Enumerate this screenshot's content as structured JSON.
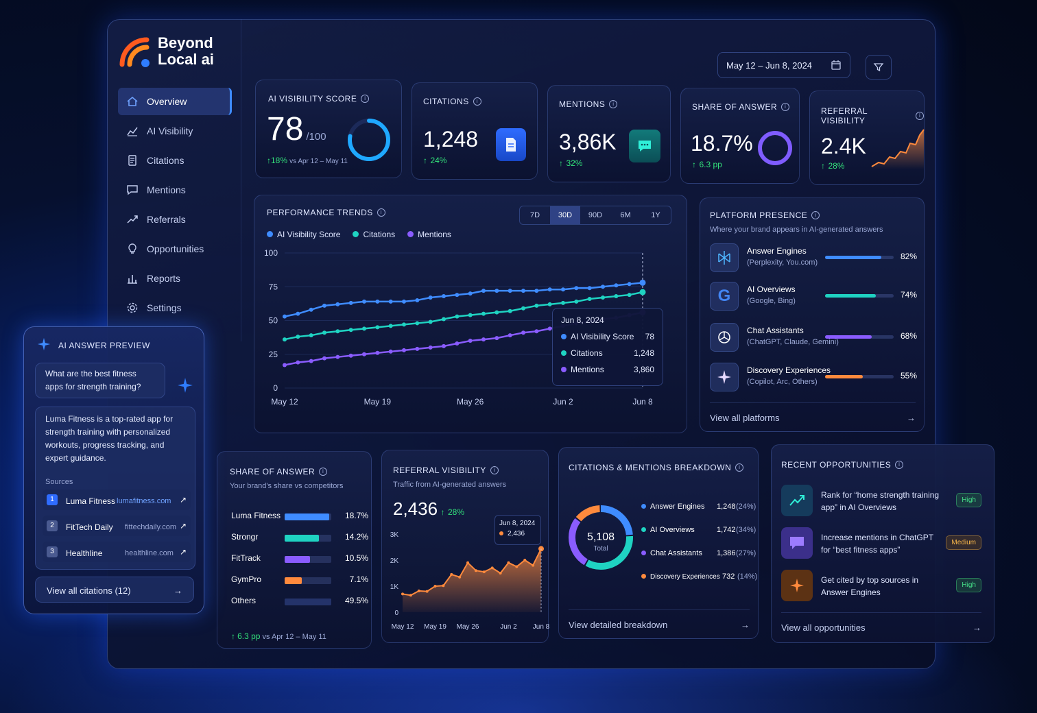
{
  "brand": {
    "line1": "Beyond",
    "line2": "Local ai"
  },
  "nav": [
    {
      "label": "Overview",
      "icon": "home-icon",
      "active": true
    },
    {
      "label": "AI Visibility",
      "icon": "chart-icon"
    },
    {
      "label": "Citations",
      "icon": "document-icon"
    },
    {
      "label": "Mentions",
      "icon": "chat-icon"
    },
    {
      "label": "Referrals",
      "icon": "trend-icon"
    },
    {
      "label": "Opportunities",
      "icon": "lightbulb-icon"
    },
    {
      "label": "Reports",
      "icon": "bar-chart-icon"
    },
    {
      "label": "Settings",
      "icon": "gear-icon"
    }
  ],
  "date_range": "May 12 – Jun 8, 2024",
  "kpis": {
    "visibility": {
      "title": "AI VISIBILITY SCORE",
      "value": "78",
      "suffix": "/100",
      "change": "18%",
      "compare": "vs Apr 12 – May 11",
      "score": 78
    },
    "citations": {
      "title": "CITATIONS",
      "value": "1,248",
      "change": "24%"
    },
    "mentions": {
      "title": "MENTIONS",
      "value": "3,86K",
      "change": "32%"
    },
    "share": {
      "title": "SHARE OF ANSWER",
      "value": "18.7%",
      "change": "6.3 pp"
    },
    "referral": {
      "title": "REFERRAL VISIBILITY",
      "value": "2.4K",
      "change": "28%"
    }
  },
  "trends": {
    "title": "PERFORMANCE TRENDS",
    "ranges": [
      "7D",
      "30D",
      "90D",
      "6M",
      "1Y"
    ],
    "active_range": "30D",
    "legend": [
      "AI Visibility Score",
      "Citations",
      "Mentions"
    ],
    "tooltip": {
      "date": "Jun 8, 2024",
      "rows": [
        {
          "label": "AI Visibility Score",
          "value": "78"
        },
        {
          "label": "Citations",
          "value": "1,248"
        },
        {
          "label": "Mentions",
          "value": "3,860"
        }
      ]
    }
  },
  "chart_data": [
    {
      "type": "line",
      "x": [
        "May 12",
        "May 13",
        "May 14",
        "May 15",
        "May 16",
        "May 17",
        "May 18",
        "May 19",
        "May 20",
        "May 21",
        "May 22",
        "May 23",
        "May 24",
        "May 25",
        "May 26",
        "May 27",
        "May 28",
        "May 29",
        "May 30",
        "May 31",
        "Jun 1",
        "Jun 2",
        "Jun 3",
        "Jun 4",
        "Jun 5",
        "Jun 6",
        "Jun 7",
        "Jun 8"
      ],
      "x_ticks": [
        "May 12",
        "May 19",
        "May 26",
        "Jun 2",
        "Jun 8"
      ],
      "y_ticks": [
        "0",
        "25",
        "50",
        "75",
        "100"
      ],
      "ylim": [
        0,
        100
      ],
      "series": [
        {
          "name": "AI Visibility Score",
          "color": "#3f8cff",
          "values": [
            53,
            55,
            58,
            61,
            62,
            63,
            64,
            64,
            64,
            64,
            65,
            67,
            68,
            69,
            70,
            72,
            72,
            72,
            72,
            72,
            73,
            73,
            74,
            74,
            75,
            76,
            77,
            78
          ]
        },
        {
          "name": "Citations",
          "color": "#1fd3c2",
          "values": [
            36,
            38,
            39,
            41,
            42,
            43,
            44,
            45,
            46,
            47,
            48,
            49,
            51,
            53,
            54,
            55,
            56,
            57,
            59,
            61,
            62,
            63,
            64,
            66,
            67,
            68,
            69,
            71
          ]
        },
        {
          "name": "Mentions",
          "color": "#8a5cff",
          "values": [
            17,
            19,
            20,
            22,
            23,
            24,
            25,
            26,
            27,
            28,
            29,
            30,
            31,
            33,
            35,
            36,
            37,
            39,
            41,
            42,
            44,
            46,
            48,
            49,
            51,
            52,
            54,
            56
          ]
        }
      ]
    },
    {
      "type": "area",
      "x": [
        "May 12",
        "May 14",
        "May 16",
        "May 18",
        "May 19",
        "May 20",
        "May 22",
        "May 24",
        "May 26",
        "May 27",
        "May 28",
        "May 30",
        "Jun 1",
        "Jun 2",
        "Jun 3",
        "Jun 5",
        "Jun 7",
        "Jun 8"
      ],
      "x_ticks": [
        "May 12",
        "May 19",
        "May 26",
        "Jun 2",
        "Jun 8"
      ],
      "y_ticks": [
        "0",
        "1K",
        "2K",
        "3K"
      ],
      "ylim": [
        0,
        3000
      ],
      "series": [
        {
          "color": "#ff8a3d",
          "values": [
            700,
            650,
            820,
            800,
            1000,
            1020,
            1450,
            1350,
            1900,
            1600,
            1550,
            1700,
            1500,
            1900,
            1750,
            2000,
            1800,
            2436
          ]
        }
      ]
    }
  ],
  "platforms": {
    "title": "PLATFORM PRESENCE",
    "subtitle": "Where your brand appears in AI-generated answers",
    "items": [
      {
        "name": "Answer Engines",
        "sub": "(Perplexity, You.com)",
        "pct": "82%",
        "value": 82,
        "color": "#3f8cff",
        "icon": "perplexity-icon"
      },
      {
        "name": "AI Overviews",
        "sub": "(Google, Bing)",
        "pct": "74%",
        "value": 74,
        "color": "#1fd3c2",
        "icon": "google-icon"
      },
      {
        "name": "Chat Assistants",
        "sub": "(ChatGPT, Claude, Gemini)",
        "pct": "68%",
        "value": 68,
        "color": "#8a5cff",
        "icon": "openai-icon"
      },
      {
        "name": "Discovery Experiences",
        "sub": "(Copilot, Arc, Others)",
        "pct": "55%",
        "value": 55,
        "color": "#ff8a3d",
        "icon": "sparkle-icon"
      }
    ],
    "footer": "View all platforms"
  },
  "share_card": {
    "title": "SHARE OF ANSWER",
    "subtitle": "Your brand's share vs competitors",
    "rows": [
      {
        "name": "Luma Fitness",
        "value": "18.7%",
        "v": 18.7,
        "color": "#3f8cff"
      },
      {
        "name": "Strongr",
        "value": "14.2%",
        "v": 14.2,
        "color": "#1fd3c2"
      },
      {
        "name": "FitTrack",
        "value": "10.5%",
        "v": 10.5,
        "color": "#8a5cff"
      },
      {
        "name": "GymPro",
        "value": "7.1%",
        "v": 7.1,
        "color": "#ff8a3d"
      },
      {
        "name": "Others",
        "value": "49.5%",
        "v": 49.5,
        "color": "#2a3a70"
      }
    ],
    "change": "6.3 pp",
    "compare": "vs Apr 12 – May 11"
  },
  "referral_card": {
    "title": "REFERRAL VISIBILITY",
    "subtitle": "Traffic from AI-generated answers",
    "value": "2,436",
    "change": "28%",
    "tooltip_date": "Jun 8, 2024",
    "tooltip_value": "2,436"
  },
  "breakdown": {
    "title": "CITATIONS & MENTIONS BREAKDOWN",
    "total": "5,108",
    "total_label": "Total",
    "rows": [
      {
        "name": "Answer Engines",
        "value": "1,248",
        "pct": "(24%)",
        "v": 24,
        "color": "#3f8cff"
      },
      {
        "name": "AI Overviews",
        "value": "1,742",
        "pct": "(34%)",
        "v": 34,
        "color": "#1fd3c2"
      },
      {
        "name": "Chat Assistants",
        "value": "1,386",
        "pct": "(27%)",
        "v": 27,
        "color": "#8a5cff"
      },
      {
        "name": "Discovery Experiences",
        "value": "732",
        "pct": "(14%)",
        "v": 14,
        "color": "#ff8a3d"
      }
    ],
    "footer": "View detailed breakdown"
  },
  "opportunities": {
    "title": "RECENT OPPORTUNITIES",
    "items": [
      {
        "text": "Rank for “home strength training app” in AI Overviews",
        "badge": "High",
        "icon": "trend-up-icon"
      },
      {
        "text": "Increase mentions in ChatGPT for “best fitness apps”",
        "badge": "Medium",
        "icon": "chat-bubble-icon"
      },
      {
        "text": "Get cited by top sources in Answer Engines",
        "badge": "High",
        "icon": "sparkle-icon"
      }
    ],
    "footer": "View all opportunities"
  },
  "preview": {
    "title": "AI ANSWER PREVIEW",
    "question": "What are the best fitness apps for strength training?",
    "answer": "Luma Fitness is a top-rated app for strength training with personalized workouts, progress tracking, and expert guidance.",
    "sources_label": "Sources",
    "sources": [
      {
        "num": "1",
        "name": "Luma Fitness",
        "url": "lumafitness.com"
      },
      {
        "num": "2",
        "name": "FitTech Daily",
        "url": "fittechdaily.com"
      },
      {
        "num": "3",
        "name": "Healthline",
        "url": "healthline.com"
      }
    ],
    "footer": "View all citations (12)"
  }
}
